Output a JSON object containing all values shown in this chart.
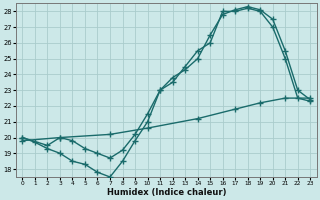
{
  "xlabel": "Humidex (Indice chaleur)",
  "bg_color": "#cce8e8",
  "grid_color": "#aacccc",
  "line_color": "#1a6b6b",
  "xlim": [
    -0.5,
    23.5
  ],
  "ylim": [
    17.5,
    28.5
  ],
  "xticks": [
    0,
    1,
    2,
    3,
    4,
    5,
    6,
    7,
    8,
    9,
    10,
    11,
    12,
    13,
    14,
    15,
    16,
    17,
    18,
    19,
    20,
    21,
    22,
    23
  ],
  "yticks": [
    18,
    19,
    20,
    21,
    22,
    23,
    24,
    25,
    26,
    27,
    28
  ],
  "line1_x": [
    0,
    1,
    2,
    3,
    4,
    5,
    6,
    7,
    8,
    9,
    10,
    11,
    12,
    13,
    14,
    15,
    16,
    17,
    18,
    19,
    20,
    21,
    22,
    23
  ],
  "line1_y": [
    20.0,
    19.7,
    19.3,
    19.0,
    18.5,
    18.3,
    17.8,
    17.5,
    18.5,
    19.8,
    21.0,
    23.0,
    23.5,
    24.5,
    25.5,
    26.0,
    28.0,
    28.0,
    28.2,
    28.0,
    27.0,
    25.0,
    22.5,
    22.3
  ],
  "line2_x": [
    0,
    2,
    3,
    4,
    5,
    6,
    7,
    8,
    9,
    10,
    11,
    12,
    13,
    14,
    15,
    16,
    17,
    18,
    19,
    20,
    21,
    22,
    23
  ],
  "line2_y": [
    20.0,
    19.5,
    20.0,
    19.8,
    19.3,
    19.0,
    18.7,
    19.2,
    20.2,
    21.5,
    23.0,
    23.8,
    24.3,
    25.0,
    26.5,
    27.8,
    28.1,
    28.3,
    28.1,
    27.5,
    25.5,
    23.0,
    22.4
  ],
  "line3_x": [
    0,
    3,
    7,
    10,
    14,
    17,
    19,
    21,
    23
  ],
  "line3_y": [
    19.8,
    20.0,
    20.2,
    20.6,
    21.2,
    21.8,
    22.2,
    22.5,
    22.5
  ],
  "marker_size": 2.5,
  "line_width": 1.0
}
